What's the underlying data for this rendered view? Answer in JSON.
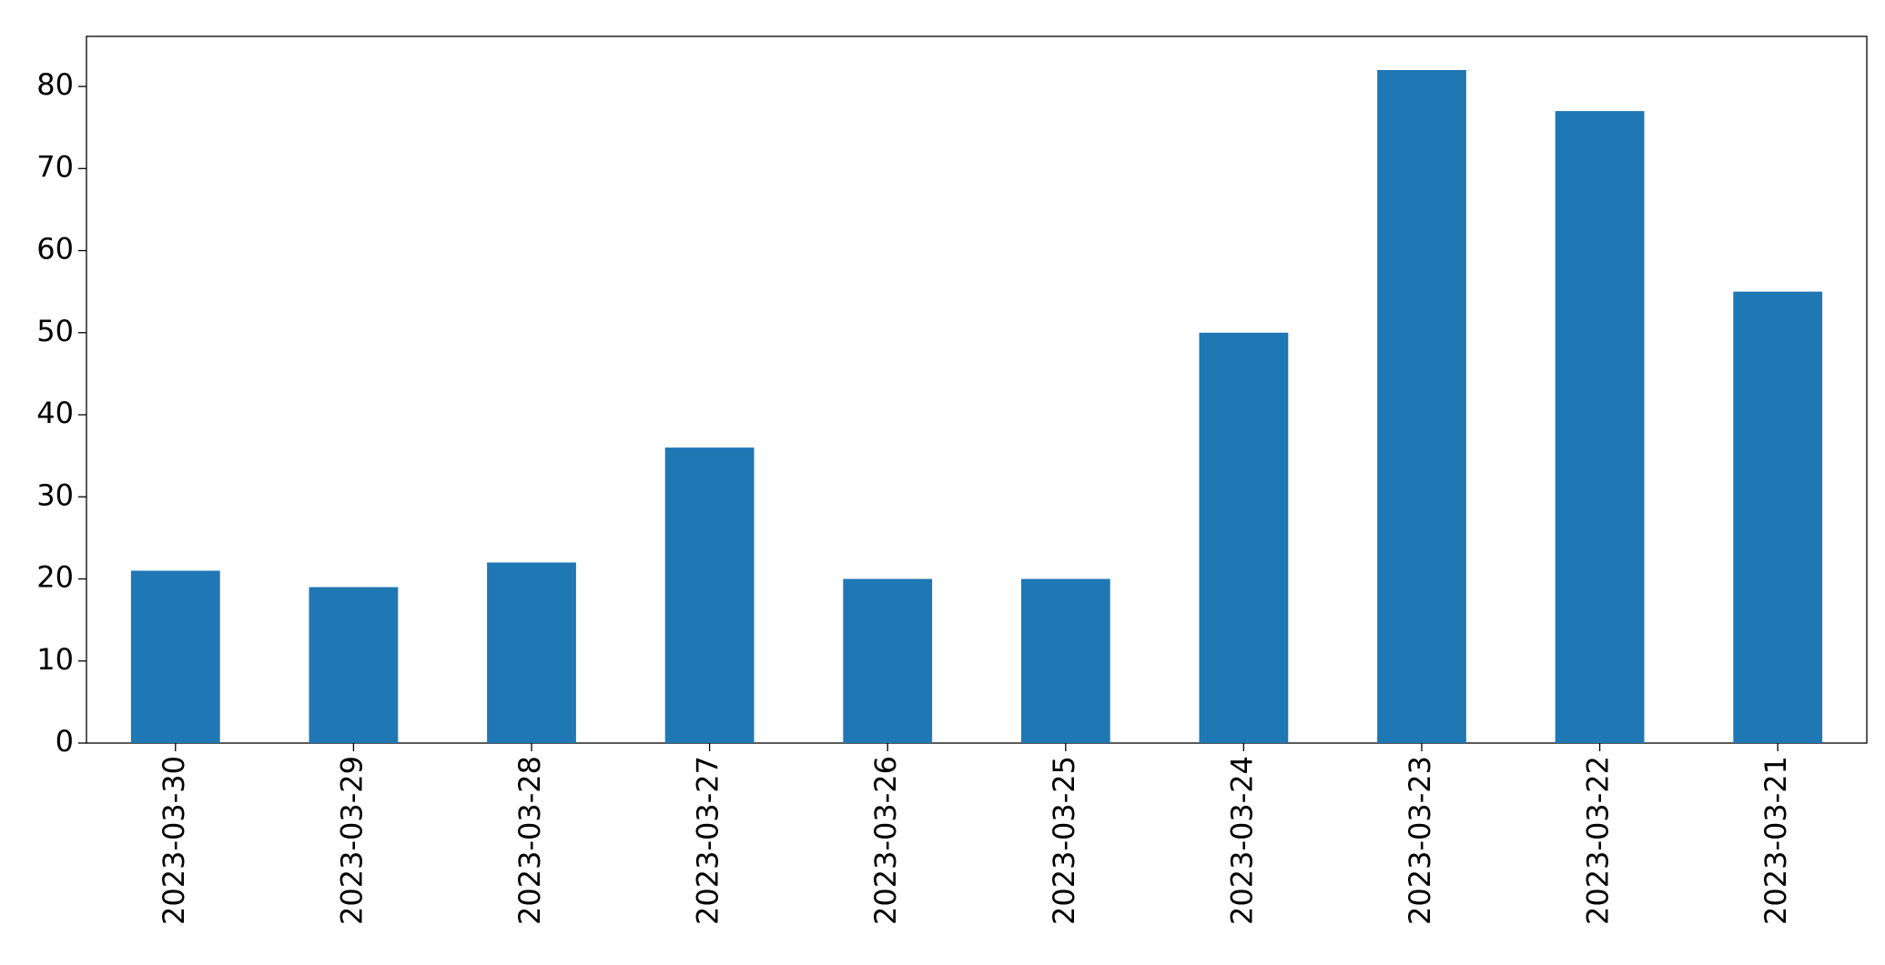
{
  "chart_data": {
    "type": "bar",
    "categories": [
      "2023-03-30",
      "2023-03-29",
      "2023-03-28",
      "2023-03-27",
      "2023-03-26",
      "2023-03-25",
      "2023-03-24",
      "2023-03-23",
      "2023-03-22",
      "2023-03-21"
    ],
    "values": [
      21,
      19,
      22,
      36,
      20,
      20,
      50,
      82,
      77,
      55
    ],
    "color": "#1f77b4",
    "ylim": [
      0,
      86.1
    ],
    "yticks": [
      0,
      10,
      20,
      30,
      40,
      50,
      60,
      70,
      80
    ],
    "grid": false
  }
}
